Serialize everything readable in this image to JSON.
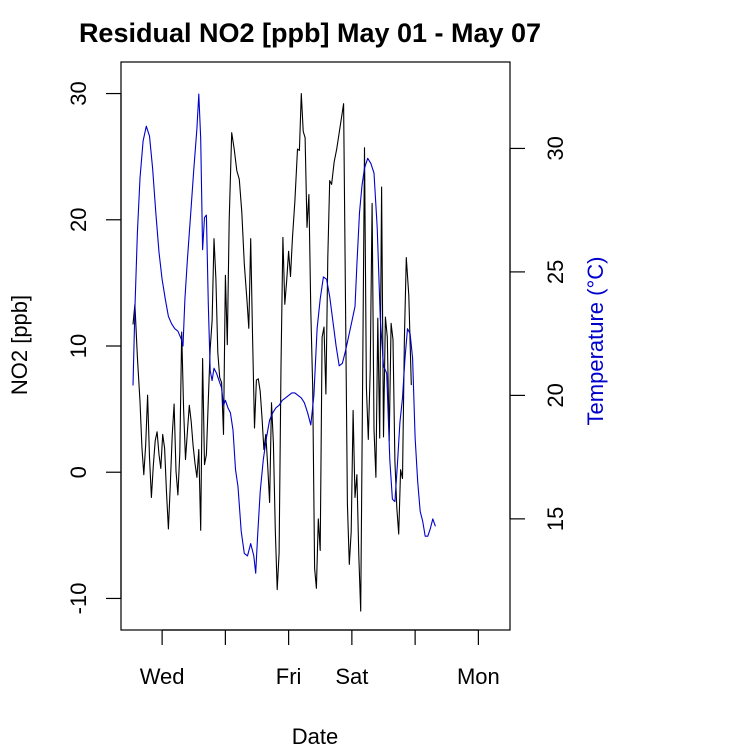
{
  "chart_data": {
    "type": "line",
    "title": "Residual NO2 [ppb] May 01 - May 07",
    "xlabel": "Date",
    "ylabel": "NO2 [ppb]",
    "y2label": "Temperature (°C)",
    "xlim": [
      0.35,
      6.5
    ],
    "ylim": [
      -12.5,
      32.5
    ],
    "y2lim": [
      10.5,
      33.5
    ],
    "x_ticks": [
      {
        "value": 1,
        "label": "Wed"
      },
      {
        "value": 2,
        "label": ""
      },
      {
        "value": 3,
        "label": "Fri"
      },
      {
        "value": 4,
        "label": "Sat"
      },
      {
        "value": 5,
        "label": ""
      },
      {
        "value": 6,
        "label": "Mon"
      }
    ],
    "y_ticks": [
      -10,
      0,
      10,
      20,
      30
    ],
    "y2_ticks": [
      15,
      20,
      25,
      30
    ],
    "grid": false,
    "series": [
      {
        "name": "NO2 [ppb]",
        "color": "#000000",
        "axis": "left",
        "points": [
          [
            0.54,
            11.7
          ],
          [
            0.57,
            13.3
          ],
          [
            0.61,
            9.1
          ],
          [
            0.65,
            5.6
          ],
          [
            0.68,
            2.0
          ],
          [
            0.71,
            -0.2
          ],
          [
            0.74,
            2.2
          ],
          [
            0.77,
            6.1
          ],
          [
            0.8,
            1.2
          ],
          [
            0.83,
            -2.0
          ],
          [
            0.86,
            0.5
          ],
          [
            0.89,
            2.5
          ],
          [
            0.92,
            3.2
          ],
          [
            0.95,
            1.4
          ],
          [
            0.98,
            0.3
          ],
          [
            1.01,
            3.0
          ],
          [
            1.04,
            1.9
          ],
          [
            1.07,
            -1.6
          ],
          [
            1.1,
            -4.5
          ],
          [
            1.13,
            -1.0
          ],
          [
            1.16,
            2.9
          ],
          [
            1.19,
            5.4
          ],
          [
            1.22,
            0.1
          ],
          [
            1.25,
            -1.8
          ],
          [
            1.28,
            1.5
          ],
          [
            1.31,
            11.1
          ],
          [
            1.34,
            5.0
          ],
          [
            1.37,
            1.0
          ],
          [
            1.4,
            3.2
          ],
          [
            1.43,
            5.3
          ],
          [
            1.46,
            4.0
          ],
          [
            1.49,
            2.1
          ],
          [
            1.52,
            0.7
          ],
          [
            1.55,
            -0.4
          ],
          [
            1.58,
            1.8
          ],
          [
            1.61,
            -4.6
          ],
          [
            1.64,
            9.0
          ],
          [
            1.67,
            0.6
          ],
          [
            1.7,
            1.4
          ],
          [
            1.73,
            5.7
          ],
          [
            1.76,
            9.8
          ],
          [
            1.79,
            12.0
          ],
          [
            1.82,
            18.5
          ],
          [
            1.85,
            15.3
          ],
          [
            1.88,
            9.5
          ],
          [
            1.91,
            7.5
          ],
          [
            1.94,
            7.1
          ],
          [
            1.97,
            3.0
          ],
          [
            2.0,
            15.6
          ],
          [
            2.03,
            10.1
          ],
          [
            2.06,
            20.0
          ],
          [
            2.1,
            26.9
          ],
          [
            2.14,
            25.6
          ],
          [
            2.18,
            23.9
          ],
          [
            2.22,
            23.2
          ],
          [
            2.26,
            20.6
          ],
          [
            2.3,
            16.5
          ],
          [
            2.34,
            13.7
          ],
          [
            2.37,
            11.4
          ],
          [
            2.4,
            18.5
          ],
          [
            2.43,
            10.6
          ],
          [
            2.46,
            3.5
          ],
          [
            2.49,
            7.3
          ],
          [
            2.52,
            7.4
          ],
          [
            2.55,
            6.4
          ],
          [
            2.58,
            4.2
          ],
          [
            2.61,
            1.8
          ],
          [
            2.64,
            3.0
          ],
          [
            2.67,
            0.5
          ],
          [
            2.7,
            -2.4
          ],
          [
            2.73,
            5.5
          ],
          [
            2.76,
            2.3
          ],
          [
            2.79,
            -4.6
          ],
          [
            2.82,
            -9.3
          ],
          [
            2.85,
            -6.4
          ],
          [
            2.88,
            8.4
          ],
          [
            2.91,
            18.6
          ],
          [
            2.94,
            13.3
          ],
          [
            2.97,
            15.2
          ],
          [
            3.0,
            17.5
          ],
          [
            3.03,
            15.5
          ],
          [
            3.06,
            18.5
          ],
          [
            3.1,
            21.5
          ],
          [
            3.14,
            25.6
          ],
          [
            3.17,
            25.5
          ],
          [
            3.2,
            30.0
          ],
          [
            3.23,
            27.0
          ],
          [
            3.26,
            26.5
          ],
          [
            3.29,
            19.4
          ],
          [
            3.32,
            22.0
          ],
          [
            3.35,
            12.8
          ],
          [
            3.38,
            6.7
          ],
          [
            3.41,
            -7.6
          ],
          [
            3.44,
            -9.2
          ],
          [
            3.47,
            -3.7
          ],
          [
            3.5,
            -6.2
          ],
          [
            3.53,
            10.7
          ],
          [
            3.56,
            11.5
          ],
          [
            3.59,
            6.2
          ],
          [
            3.62,
            17.0
          ],
          [
            3.65,
            23.1
          ],
          [
            3.68,
            22.8
          ],
          [
            3.72,
            24.6
          ],
          [
            3.76,
            25.6
          ],
          [
            3.8,
            26.9
          ],
          [
            3.84,
            28.2
          ],
          [
            3.87,
            29.2
          ],
          [
            3.9,
            13.5
          ],
          [
            3.93,
            -2.5
          ],
          [
            3.96,
            -7.3
          ],
          [
            3.99,
            -4.7
          ],
          [
            4.02,
            4.9
          ],
          [
            4.05,
            -2.0
          ],
          [
            4.08,
            -0.2
          ],
          [
            4.11,
            -6.6
          ],
          [
            4.14,
            -11.0
          ],
          [
            4.17,
            7.0
          ],
          [
            4.2,
            25.7
          ],
          [
            4.23,
            6.7
          ],
          [
            4.26,
            2.6
          ],
          [
            4.29,
            8.0
          ],
          [
            4.32,
            21.3
          ],
          [
            4.35,
            3.4
          ],
          [
            4.38,
            -0.4
          ],
          [
            4.41,
            12.2
          ],
          [
            4.44,
            2.7
          ],
          [
            4.47,
            22.6
          ],
          [
            4.5,
            2.8
          ],
          [
            4.53,
            12.3
          ],
          [
            4.56,
            10.7
          ],
          [
            4.59,
            2.5
          ],
          [
            4.62,
            11.8
          ],
          [
            4.65,
            10.5
          ],
          [
            4.68,
            0.9
          ],
          [
            4.71,
            -2.8
          ],
          [
            4.74,
            -4.9
          ],
          [
            4.77,
            0.2
          ],
          [
            4.8,
            -0.5
          ],
          [
            4.83,
            10.6
          ],
          [
            4.86,
            17.0
          ],
          [
            4.9,
            14.0
          ],
          [
            4.94,
            6.9
          ]
        ]
      },
      {
        "name": "Temperature (°C)",
        "color": "#0000cc",
        "axis": "right",
        "points": [
          [
            0.54,
            20.4
          ],
          [
            0.57,
            23.5
          ],
          [
            0.61,
            26.6
          ],
          [
            0.65,
            28.8
          ],
          [
            0.7,
            30.3
          ],
          [
            0.75,
            30.9
          ],
          [
            0.8,
            30.5
          ],
          [
            0.85,
            29.2
          ],
          [
            0.9,
            27.4
          ],
          [
            0.95,
            25.8
          ],
          [
            1.0,
            24.7
          ],
          [
            1.05,
            23.9
          ],
          [
            1.1,
            23.2
          ],
          [
            1.15,
            22.9
          ],
          [
            1.2,
            22.7
          ],
          [
            1.25,
            22.6
          ],
          [
            1.3,
            22.3
          ],
          [
            1.33,
            22.0
          ],
          [
            1.36,
            23.9
          ],
          [
            1.4,
            25.5
          ],
          [
            1.45,
            27.3
          ],
          [
            1.5,
            29.1
          ],
          [
            1.55,
            30.8
          ],
          [
            1.58,
            32.2
          ],
          [
            1.61,
            30.4
          ],
          [
            1.64,
            25.9
          ],
          [
            1.67,
            27.2
          ],
          [
            1.7,
            27.3
          ],
          [
            1.73,
            23.7
          ],
          [
            1.76,
            21.0
          ],
          [
            1.79,
            20.6
          ],
          [
            1.82,
            21.1
          ],
          [
            1.86,
            20.9
          ],
          [
            1.9,
            20.6
          ],
          [
            1.94,
            20.3
          ],
          [
            1.97,
            19.6
          ],
          [
            2.0,
            19.8
          ],
          [
            2.04,
            19.5
          ],
          [
            2.08,
            19.3
          ],
          [
            2.12,
            18.6
          ],
          [
            2.16,
            17.0
          ],
          [
            2.2,
            16.3
          ],
          [
            2.25,
            14.5
          ],
          [
            2.3,
            13.6
          ],
          [
            2.35,
            13.5
          ],
          [
            2.4,
            14.0
          ],
          [
            2.45,
            13.5
          ],
          [
            2.48,
            12.8
          ],
          [
            2.51,
            14.3
          ],
          [
            2.55,
            16.1
          ],
          [
            2.6,
            17.4
          ],
          [
            2.65,
            18.3
          ],
          [
            2.7,
            19.0
          ],
          [
            2.75,
            19.3
          ],
          [
            2.8,
            19.5
          ],
          [
            2.85,
            19.6
          ],
          [
            2.9,
            19.8
          ],
          [
            2.95,
            19.9
          ],
          [
            3.0,
            20.0
          ],
          [
            3.05,
            20.1
          ],
          [
            3.1,
            20.1
          ],
          [
            3.15,
            20.0
          ],
          [
            3.2,
            19.9
          ],
          [
            3.25,
            19.7
          ],
          [
            3.3,
            19.3
          ],
          [
            3.35,
            18.8
          ],
          [
            3.4,
            20.0
          ],
          [
            3.45,
            22.7
          ],
          [
            3.5,
            23.9
          ],
          [
            3.55,
            24.8
          ],
          [
            3.6,
            24.7
          ],
          [
            3.65,
            24.0
          ],
          [
            3.7,
            23.0
          ],
          [
            3.75,
            22.0
          ],
          [
            3.8,
            21.2
          ],
          [
            3.85,
            21.3
          ],
          [
            3.9,
            21.8
          ],
          [
            3.95,
            22.4
          ],
          [
            4.0,
            23.0
          ],
          [
            4.05,
            23.6
          ],
          [
            4.08,
            25.3
          ],
          [
            4.12,
            27.4
          ],
          [
            4.16,
            28.5
          ],
          [
            4.2,
            29.2
          ],
          [
            4.25,
            29.6
          ],
          [
            4.3,
            29.4
          ],
          [
            4.35,
            29.0
          ],
          [
            4.4,
            26.8
          ],
          [
            4.45,
            23.1
          ],
          [
            4.5,
            21.2
          ],
          [
            4.55,
            20.9
          ],
          [
            4.6,
            17.4
          ],
          [
            4.64,
            15.8
          ],
          [
            4.68,
            15.7
          ],
          [
            4.72,
            17.2
          ],
          [
            4.76,
            18.9
          ],
          [
            4.8,
            19.9
          ],
          [
            4.84,
            21.5
          ],
          [
            4.88,
            22.7
          ],
          [
            4.92,
            22.5
          ],
          [
            4.96,
            21.5
          ],
          [
            5.0,
            18.3
          ],
          [
            5.04,
            16.5
          ],
          [
            5.08,
            15.3
          ],
          [
            5.12,
            14.9
          ],
          [
            5.16,
            14.3
          ],
          [
            5.2,
            14.3
          ],
          [
            5.24,
            14.6
          ],
          [
            5.28,
            15.0
          ],
          [
            5.32,
            14.7
          ]
        ]
      }
    ]
  }
}
